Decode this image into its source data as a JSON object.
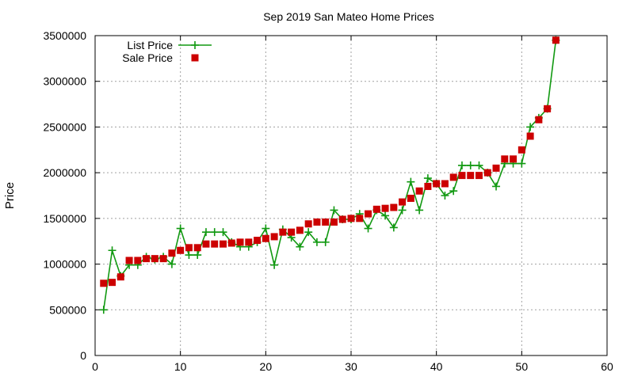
{
  "chart_data": {
    "type": "line",
    "title": "Sep 2019 San Mateo Home Prices",
    "xlabel": "",
    "ylabel": "Price",
    "xlim": [
      0,
      60
    ],
    "ylim": [
      0,
      3500000
    ],
    "xticks": [
      0,
      10,
      20,
      30,
      40,
      50,
      60
    ],
    "yticks": [
      0,
      500000,
      1000000,
      1500000,
      2000000,
      2500000,
      3000000,
      3500000
    ],
    "grid": true,
    "legend_position": "top-left",
    "series": [
      {
        "name": "List Price",
        "style": "line-with-plus-markers",
        "color": "#119911",
        "x": [
          1,
          2,
          3,
          4,
          5,
          6,
          7,
          8,
          9,
          10,
          11,
          12,
          13,
          14,
          15,
          16,
          17,
          18,
          19,
          20,
          21,
          22,
          23,
          24,
          25,
          26,
          27,
          28,
          29,
          30,
          31,
          32,
          33,
          34,
          35,
          36,
          37,
          38,
          39,
          40,
          41,
          42,
          43,
          44,
          45,
          46,
          47,
          48,
          49,
          50,
          51,
          52,
          53,
          54
        ],
        "values": [
          500000,
          1150000,
          870000,
          990000,
          990000,
          1080000,
          1050000,
          1080000,
          1000000,
          1390000,
          1100000,
          1100000,
          1350000,
          1350000,
          1350000,
          1240000,
          1190000,
          1190000,
          1240000,
          1390000,
          990000,
          1380000,
          1290000,
          1190000,
          1350000,
          1240000,
          1240000,
          1590000,
          1490000,
          1490000,
          1550000,
          1390000,
          1590000,
          1530000,
          1400000,
          1590000,
          1900000,
          1590000,
          1940000,
          1880000,
          1750000,
          1800000,
          2080000,
          2080000,
          2080000,
          2000000,
          1850000,
          2100000,
          2100000,
          2100000,
          2500000,
          2600000,
          2700000,
          3450000
        ]
      },
      {
        "name": "Sale Price",
        "style": "square-markers",
        "color": "#cc0000",
        "x": [
          1,
          2,
          3,
          4,
          5,
          6,
          7,
          8,
          9,
          10,
          11,
          12,
          13,
          14,
          15,
          16,
          17,
          18,
          19,
          20,
          21,
          22,
          23,
          24,
          25,
          26,
          27,
          28,
          29,
          30,
          31,
          32,
          33,
          34,
          35,
          36,
          37,
          38,
          39,
          40,
          41,
          42,
          43,
          44,
          45,
          46,
          47,
          48,
          49,
          50,
          51,
          52,
          53,
          54
        ],
        "values": [
          790000,
          800000,
          860000,
          1040000,
          1040000,
          1060000,
          1060000,
          1060000,
          1120000,
          1150000,
          1180000,
          1180000,
          1220000,
          1220000,
          1220000,
          1230000,
          1240000,
          1240000,
          1260000,
          1280000,
          1300000,
          1350000,
          1350000,
          1370000,
          1440000,
          1460000,
          1460000,
          1460000,
          1490000,
          1500000,
          1500000,
          1550000,
          1600000,
          1610000,
          1620000,
          1680000,
          1720000,
          1800000,
          1850000,
          1880000,
          1880000,
          1950000,
          1970000,
          1970000,
          1970000,
          2000000,
          2050000,
          2150000,
          2150000,
          2250000,
          2400000,
          2580000,
          2700000,
          3450000
        ]
      }
    ]
  }
}
